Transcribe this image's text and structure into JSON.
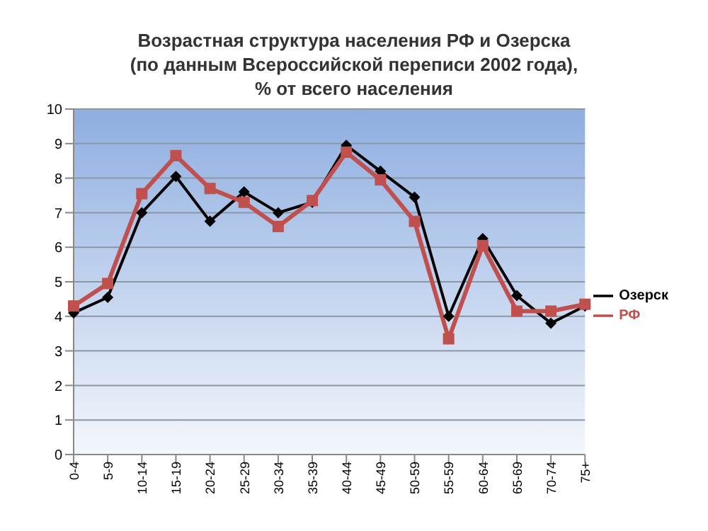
{
  "chart_data": {
    "type": "line",
    "title": "Возрастная структура населения РФ и Озерска\n(по данным Всероссийской переписи 2002 года),\n% от всего населения",
    "categories": [
      "0-4",
      "5-9",
      "10-14",
      "15-19",
      "20-24",
      "25-29",
      "30-34",
      "35-39",
      "40-44",
      "45-49",
      "50-59",
      "55-59",
      "60-64",
      "65-69",
      "70-74",
      "75+"
    ],
    "series": [
      {
        "name": "Озерск",
        "color": "#000000",
        "marker": "diamond",
        "values": [
          4.1,
          4.55,
          7.0,
          8.05,
          6.75,
          7.6,
          7.0,
          7.3,
          8.95,
          8.2,
          7.45,
          4.0,
          6.25,
          4.6,
          3.8,
          4.3
        ]
      },
      {
        "name": "РФ",
        "color": "#c0504d",
        "marker": "square",
        "values": [
          4.3,
          4.95,
          7.55,
          8.65,
          7.7,
          7.3,
          6.6,
          7.35,
          8.75,
          7.95,
          6.75,
          3.35,
          6.05,
          4.15,
          4.15,
          4.35
        ]
      }
    ],
    "ylim": [
      0,
      10
    ],
    "yticks": [
      0,
      1,
      2,
      3,
      4,
      5,
      6,
      7,
      8,
      9,
      10
    ],
    "grid": "y",
    "legend": "right"
  }
}
